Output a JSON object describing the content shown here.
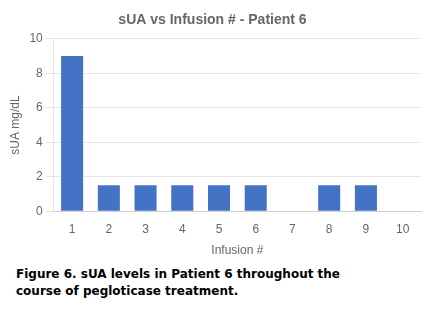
{
  "chart_data": {
    "type": "bar",
    "title": "sUA vs Infusion # - Patient 6",
    "xlabel": "Infusion #",
    "ylabel": "sUA mg/dL",
    "x": [
      1,
      2,
      3,
      4,
      5,
      6,
      8,
      9
    ],
    "values": [
      9.0,
      1.5,
      1.5,
      1.5,
      1.5,
      1.5,
      1.5,
      1.5
    ],
    "color": "#4472C4",
    "xlim": [
      0.5,
      10.5
    ],
    "xticks": [
      1,
      2,
      3,
      4,
      5,
      6,
      7,
      8,
      9,
      10
    ],
    "ylim": [
      0,
      10
    ],
    "yticks": [
      0,
      2,
      4,
      6,
      8,
      10
    ],
    "grid": "y",
    "caption": [
      "Figure 6. sUA levels in Patient 6 throughout the",
      "course of pegloticase treatment."
    ]
  }
}
